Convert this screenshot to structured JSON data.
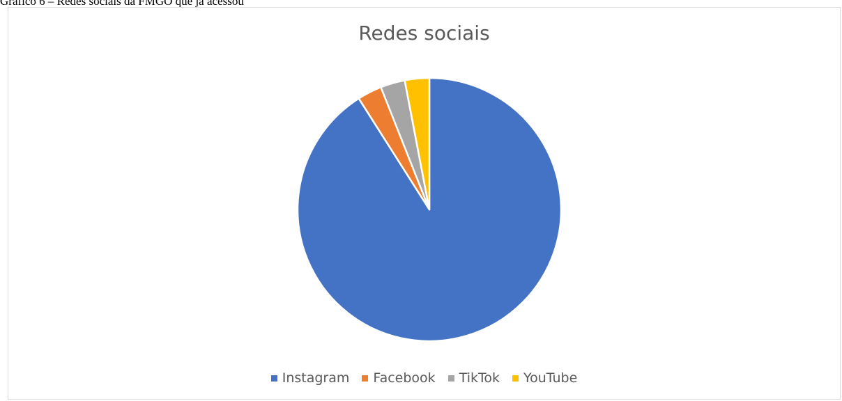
{
  "caption": "Gráfico 6 – Redes sociais da FMGO que já acessou",
  "chart_data": {
    "type": "pie",
    "title": "Redes sociais",
    "categories": [
      "Instagram",
      "Facebook",
      "TikTok",
      "YouTube"
    ],
    "values": [
      91,
      3,
      3,
      3
    ],
    "colors": [
      "#4472c4",
      "#ed7d31",
      "#a5a5a5",
      "#ffc000"
    ],
    "legend_position": "bottom",
    "start_angle_deg": 0,
    "direction": "clockwise"
  }
}
